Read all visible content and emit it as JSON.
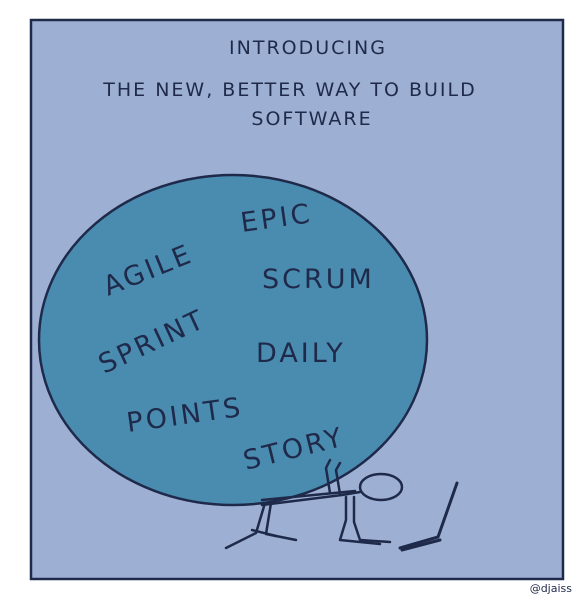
{
  "comic": {
    "line1": "INTRODUCING",
    "line2": "THE NEW, BETTER WAY TO BUILD",
    "line3": "SOFTWARE",
    "words": {
      "agile": "AGILE",
      "epic": "EPIC",
      "scrum": "SCRUM",
      "sprint": "SPRINT",
      "daily": "DAILY",
      "points": "POINTS",
      "story": "STORY"
    },
    "credit": "@djaiss"
  },
  "colors": {
    "panel_bg": "#9db0d3",
    "boulder": "#4a8bb0",
    "ink": "#1f2a4a"
  }
}
